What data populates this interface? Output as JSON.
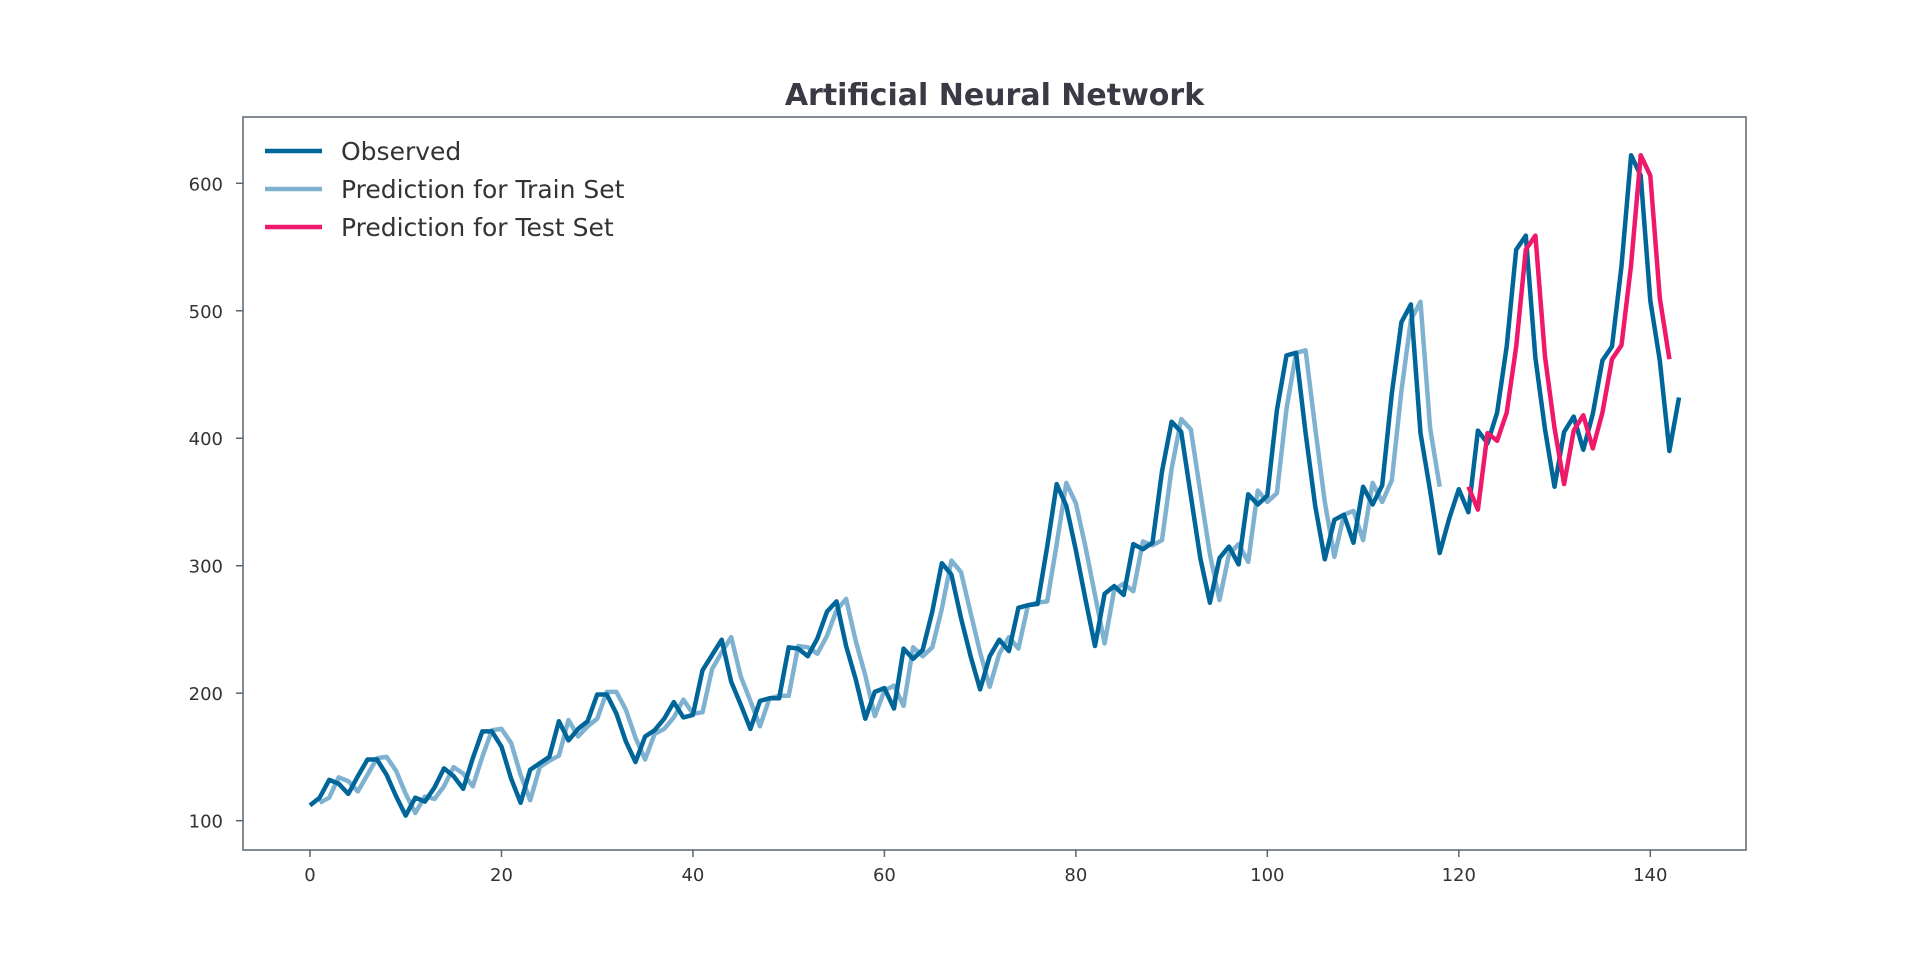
{
  "chart_data": {
    "type": "line",
    "title": "Artificial Neural Network",
    "xlabel": "",
    "ylabel": "",
    "xlim": [
      -7,
      150
    ],
    "ylim": [
      77,
      652
    ],
    "xticks": [
      0,
      20,
      40,
      60,
      80,
      100,
      120,
      140
    ],
    "yticks": [
      100,
      200,
      300,
      400,
      500,
      600
    ],
    "grid": false,
    "legend_position": "top-left",
    "series": [
      {
        "name": "Observed",
        "color": "#006699",
        "x_start": 0,
        "values": [
          112,
          118,
          132,
          129,
          121,
          135,
          148,
          148,
          136,
          119,
          104,
          118,
          115,
          126,
          141,
          135,
          125,
          149,
          170,
          170,
          158,
          133,
          114,
          140,
          145,
          150,
          178,
          163,
          172,
          178,
          199,
          199,
          184,
          162,
          146,
          166,
          171,
          180,
          193,
          181,
          183,
          218,
          230,
          242,
          209,
          191,
          172,
          194,
          196,
          196,
          236,
          235,
          229,
          243,
          264,
          272,
          237,
          211,
          180,
          201,
          204,
          188,
          235,
          227,
          234,
          264,
          302,
          293,
          259,
          229,
          203,
          229,
          242,
          233,
          267,
          269,
          270,
          315,
          364,
          347,
          312,
          274,
          237,
          278,
          284,
          277,
          317,
          313,
          318,
          374,
          413,
          405,
          355,
          306,
          271,
          306,
          315,
          301,
          356,
          348,
          355,
          422,
          465,
          467,
          404,
          347,
          305,
          336,
          340,
          318,
          362,
          348,
          363,
          435,
          491,
          505,
          404,
          359,
          310,
          337,
          360,
          342,
          406,
          396,
          420,
          472,
          548,
          559,
          463,
          407,
          362,
          405,
          417,
          391,
          419,
          461,
          472,
          535,
          622,
          606,
          508,
          461,
          390,
          432
        ]
      },
      {
        "name": "Prediction for Train Set",
        "color": "#7fb2d0",
        "x_start": 1,
        "values": [
          114,
          118,
          134,
          131,
          123,
          136,
          149,
          150,
          139,
          121,
          106,
          119,
          117,
          127,
          142,
          137,
          127,
          150,
          171,
          172,
          161,
          136,
          116,
          142,
          147,
          151,
          179,
          166,
          174,
          180,
          201,
          201,
          187,
          165,
          148,
          168,
          172,
          181,
          195,
          184,
          185,
          219,
          232,
          244,
          213,
          194,
          174,
          196,
          198,
          198,
          237,
          236,
          231,
          245,
          265,
          274,
          241,
          214,
          182,
          202,
          206,
          190,
          236,
          229,
          236,
          266,
          304,
          295,
          263,
          232,
          205,
          231,
          244,
          235,
          269,
          271,
          272,
          317,
          365,
          349,
          315,
          277,
          239,
          281,
          286,
          280,
          319,
          316,
          320,
          376,
          415,
          407,
          358,
          309,
          273,
          309,
          317,
          303,
          359,
          350,
          357,
          423,
          467,
          469,
          408,
          350,
          307,
          340,
          343,
          320,
          365,
          350,
          367,
          437,
          493,
          507,
          408,
          362
        ]
      },
      {
        "name": "Prediction for Test Set",
        "color": "#f0186b",
        "x_start": 121,
        "values": [
          362,
          344,
          404,
          398,
          420,
          472,
          548,
          559,
          464,
          408,
          364,
          406,
          418,
          392,
          420,
          462,
          473,
          536,
          622,
          606,
          510,
          462
        ]
      }
    ]
  }
}
